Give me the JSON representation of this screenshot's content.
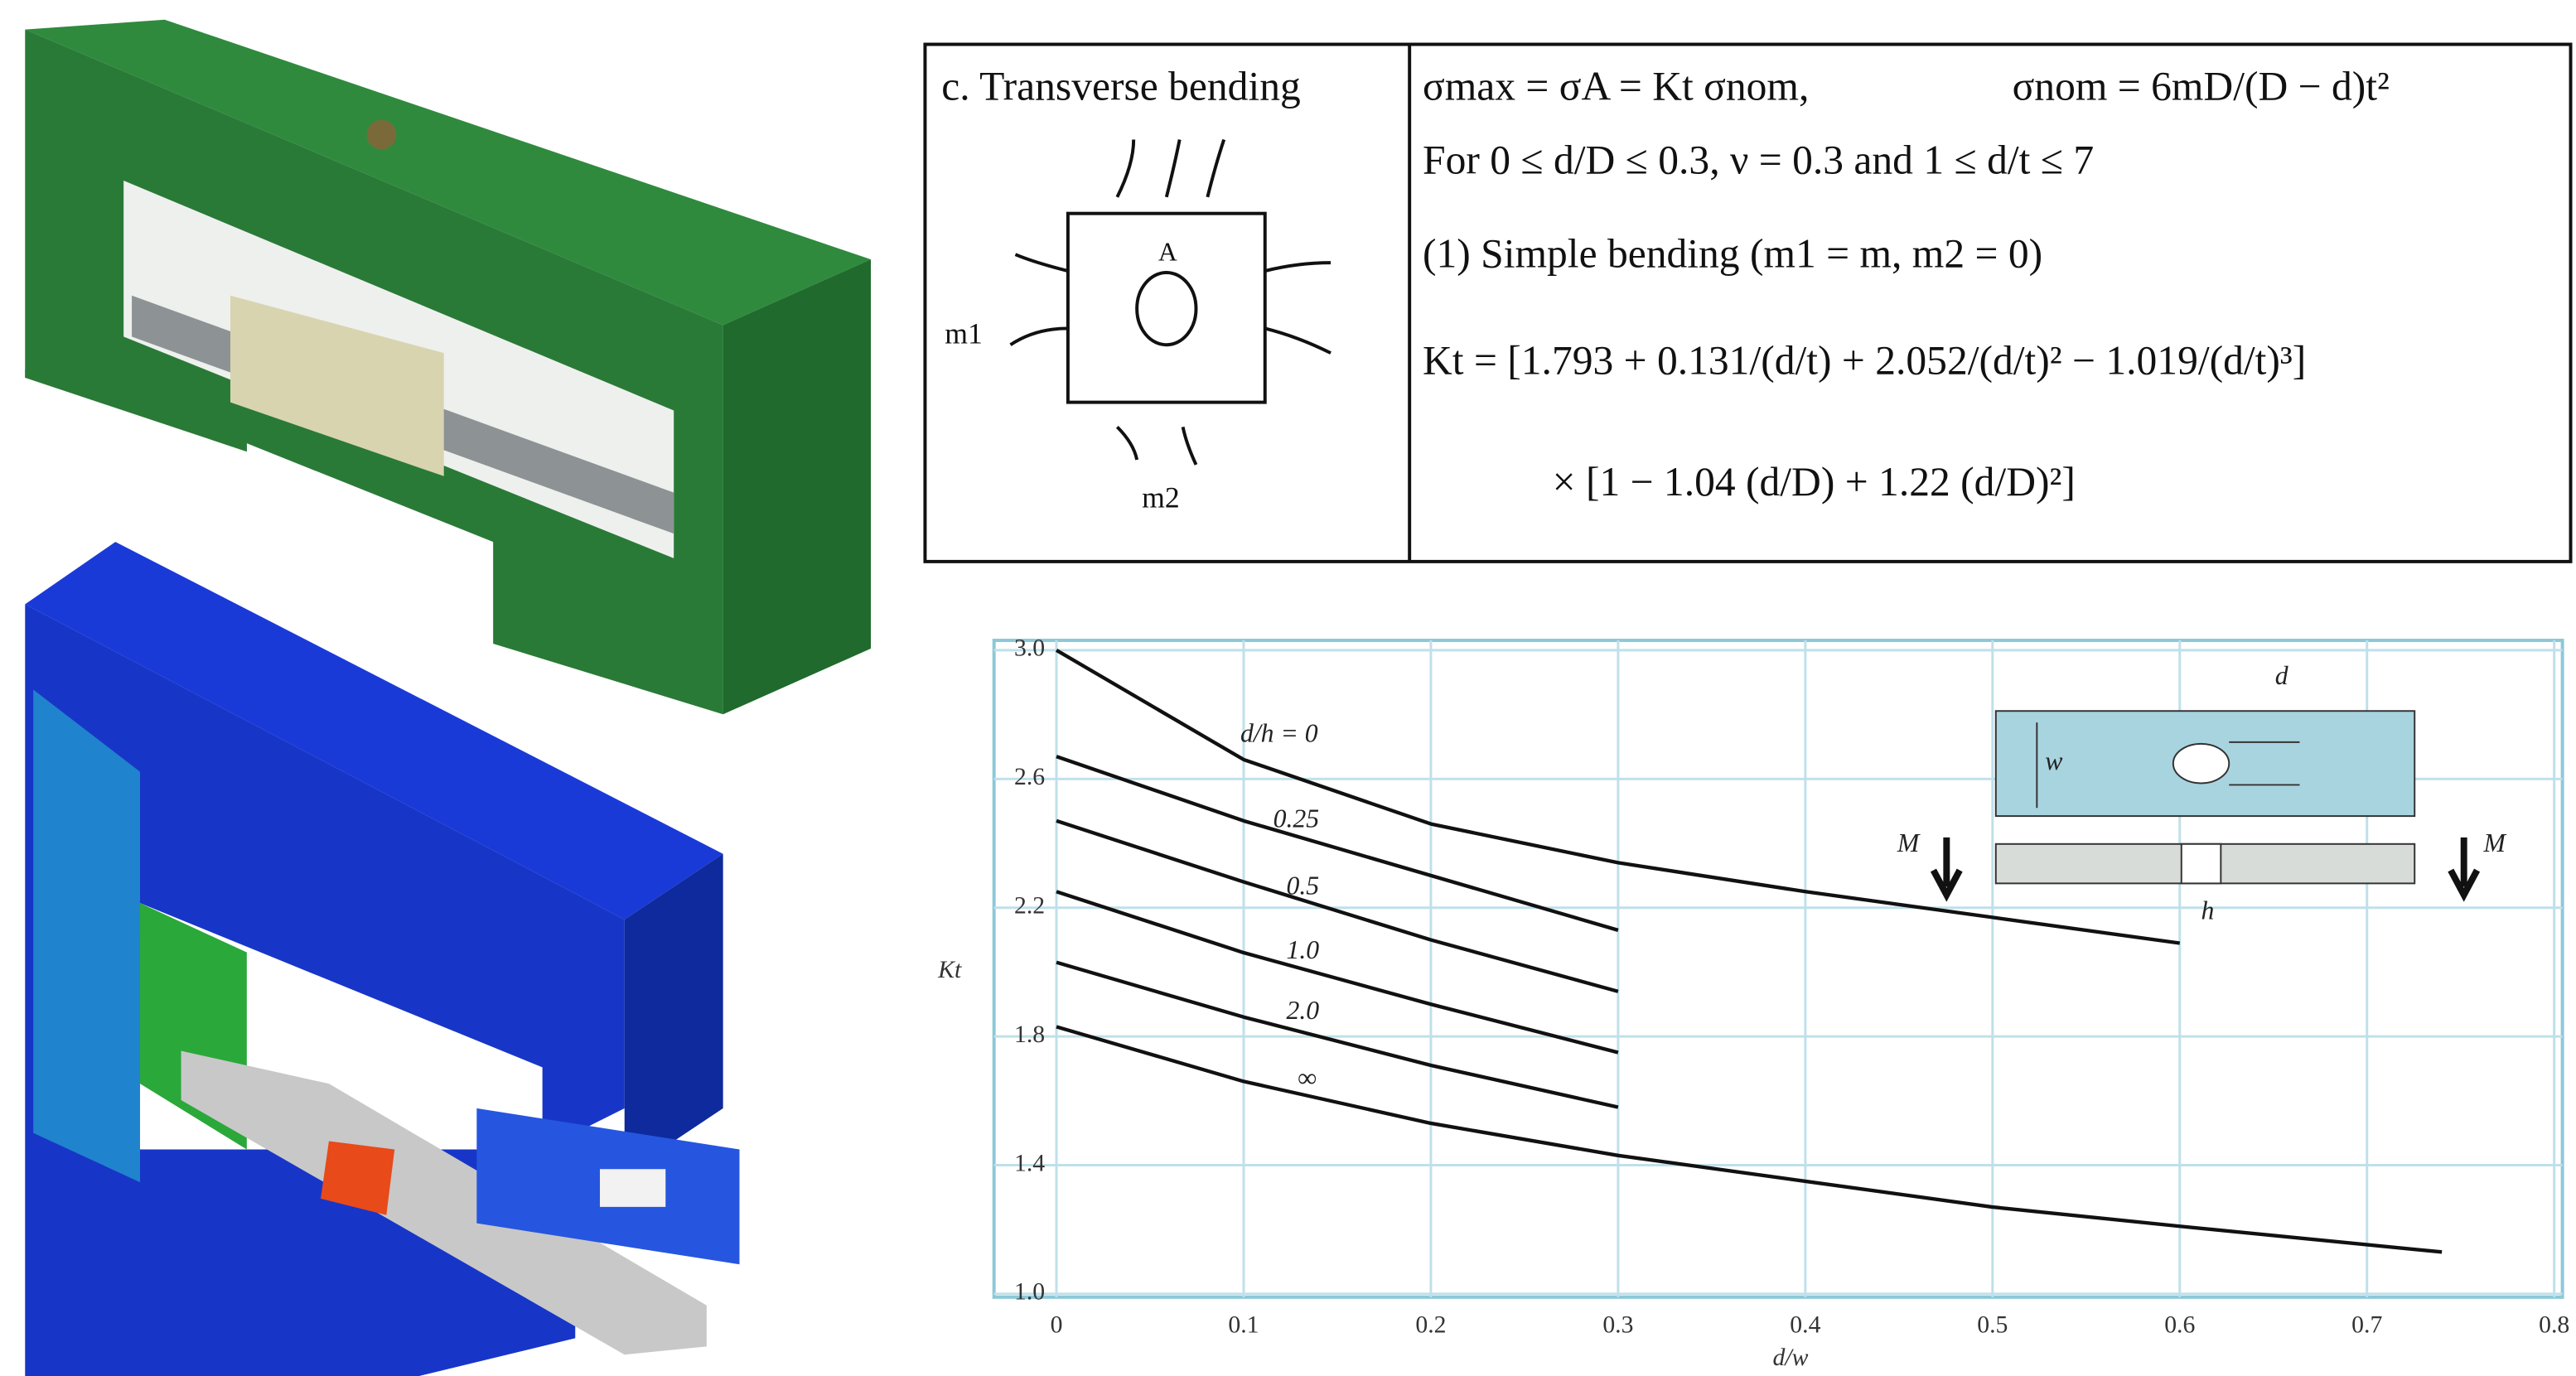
{
  "table": {
    "case_title": "c. Transverse bending",
    "diagram_labels": [
      "m1",
      "m2",
      "A"
    ],
    "formula_lines": [
      "σmax = σA = Kt σnom,",
      "σnom = 6mD/(D − d)t²",
      "For 0 ≤ d/D ≤ 0.3,  ν = 0.3 and 1 ≤ d/t ≤ 7",
      "(1) Simple bending (m1 = m,  m2 = 0)",
      "Kt = [1.793 + 0.131/(d/t) + 2.052/(d/t)² − 1.019/(d/t)³]",
      "× [1 − 1.04 (d/D) + 1.22 (d/D)²]"
    ]
  },
  "chart_data": {
    "type": "line",
    "x_label": "d/w",
    "y_label": "Kt",
    "x": [
      0,
      0.1,
      0.2,
      0.3,
      0.4,
      0.5,
      0.6,
      0.74
    ],
    "series": [
      {
        "name": "d/h = 0",
        "color": "#111111",
        "values": [
          3.0,
          2.66,
          2.46,
          2.34,
          2.25,
          2.17,
          2.09,
          null
        ]
      },
      {
        "name": "0.25",
        "color": "#111111",
        "values": [
          2.67,
          2.47,
          2.3,
          2.13,
          null,
          null,
          null,
          null
        ]
      },
      {
        "name": "0.5",
        "color": "#111111",
        "values": [
          2.47,
          2.28,
          2.1,
          1.94,
          null,
          null,
          null,
          null
        ]
      },
      {
        "name": "1.0",
        "color": "#111111",
        "values": [
          2.25,
          2.06,
          1.9,
          1.75,
          null,
          null,
          null,
          null
        ]
      },
      {
        "name": "2.0",
        "color": "#111111",
        "values": [
          2.03,
          1.86,
          1.71,
          1.58,
          null,
          null,
          null,
          null
        ]
      },
      {
        "name": "∞",
        "color": "#111111",
        "values": [
          1.83,
          1.66,
          1.53,
          1.43,
          1.35,
          1.27,
          1.21,
          1.13
        ]
      }
    ],
    "xlim": [
      0,
      0.8
    ],
    "ylim": [
      1.0,
      3.0
    ],
    "xticks": [
      0,
      0.1,
      0.2,
      0.3,
      0.4,
      0.5,
      0.6,
      0.7,
      0.8
    ],
    "yticks": [
      {
        "value": 1.0,
        "label": "1.0"
      },
      {
        "value": 1.4,
        "label": "1.4"
      },
      {
        "value": 1.8,
        "label": "1.8"
      },
      {
        "value": 2.2,
        "label": "2.2"
      },
      {
        "value": 2.6,
        "label": "2.6"
      },
      {
        "value": 3.0,
        "label": "3.0"
      }
    ],
    "grid": true,
    "grid_color": "#bfe0ea",
    "inset_labels": [
      "d",
      "w",
      "M",
      "M",
      "h"
    ]
  }
}
